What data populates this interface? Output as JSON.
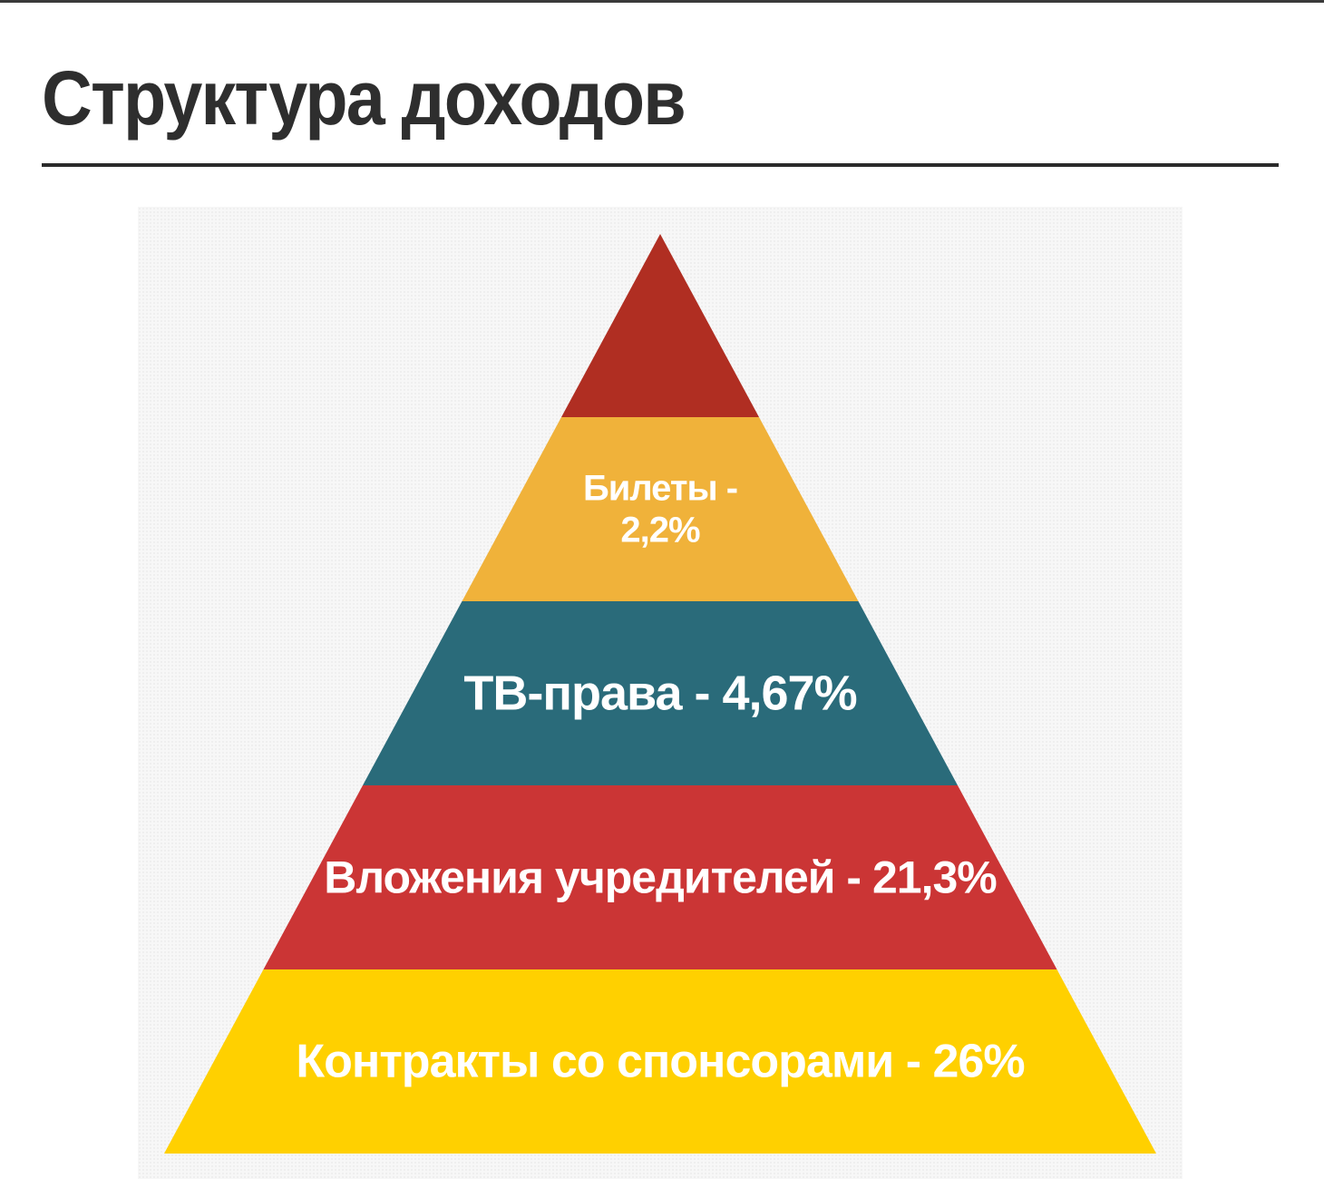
{
  "title": "Структура доходов",
  "pyramid": {
    "layers": [
      {
        "label_lines": [],
        "color": "#b02e22"
      },
      {
        "label_lines": [
          "Билеты -",
          "2,2%"
        ],
        "color": "#f0b23a"
      },
      {
        "label_lines": [
          "ТВ-права - 4,67%"
        ],
        "color": "#2a6b7a"
      },
      {
        "label_lines": [
          "Вложения учредителей - 21,3%"
        ],
        "color": "#cb3535"
      },
      {
        "label_lines": [
          "Контракты со спонсорами - 26%"
        ],
        "color": "#ffd000"
      }
    ]
  }
}
